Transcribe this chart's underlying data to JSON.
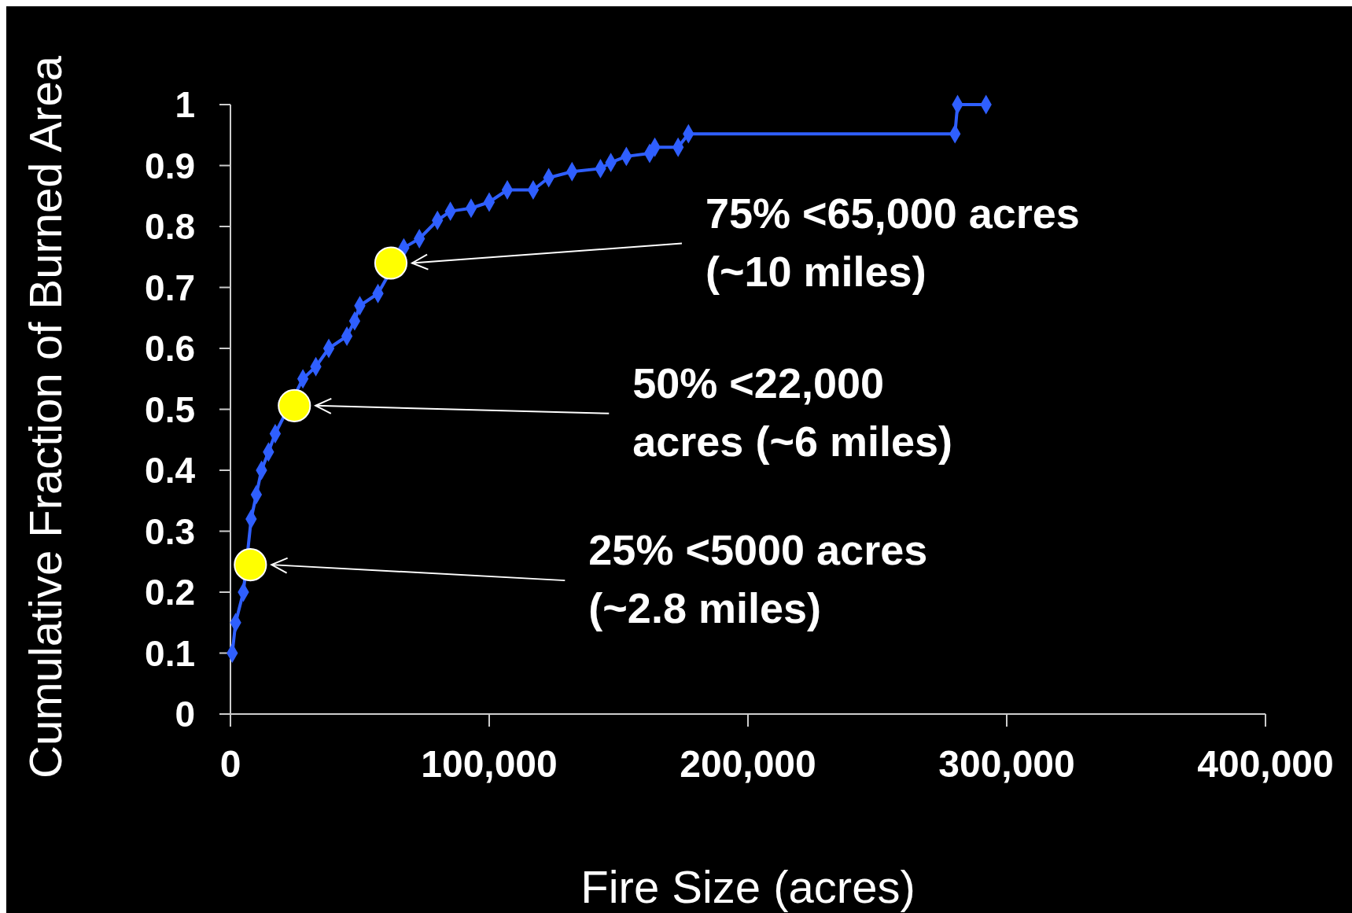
{
  "chart_data": {
    "type": "line",
    "xlabel": "Fire Size (acres)",
    "ylabel": "Cumulative Fraction of Burned Area",
    "xlim": [
      0,
      400000
    ],
    "xticks": [
      0,
      {
        "value": 100000,
        "label": "100,000"
      },
      {
        "value": 200000,
        "label": "200,000"
      },
      {
        "value": 300000,
        "label": "300,000"
      },
      {
        "value": 400000,
        "label": "400,000"
      }
    ],
    "ylim": [
      0,
      1
    ],
    "yticks": [
      0,
      0.1,
      0.2,
      0.3,
      0.4,
      0.5,
      0.6,
      0.7,
      0.8,
      0.9,
      1
    ],
    "grid": false,
    "series": [
      {
        "color": "#2f5fff",
        "marker": "diamond",
        "line_style": "solid",
        "x": [
          700,
          2000,
          5000,
          8000,
          10000,
          12000,
          14700,
          17300,
          28000,
          33000,
          38000,
          45000,
          48000,
          50000,
          57000,
          67000,
          73000,
          80000,
          85000,
          93000,
          100000,
          107000,
          117000,
          123000,
          132000,
          143000,
          147000,
          153000,
          162000,
          164000,
          173000,
          177000,
          280000,
          281000,
          292000
        ],
        "values": [
          0.1,
          0.15,
          0.2,
          0.32,
          0.36,
          0.4,
          0.43,
          0.46,
          0.55,
          0.57,
          0.6,
          0.62,
          0.645,
          0.67,
          0.69,
          0.765,
          0.78,
          0.81,
          0.825,
          0.83,
          0.84,
          0.86,
          0.86,
          0.88,
          0.89,
          0.895,
          0.905,
          0.915,
          0.92,
          0.93,
          0.93,
          0.952,
          0.952,
          1,
          1
        ]
      },
      {
        "type": "scatter",
        "color": "#ffff00",
        "marker": "circle",
        "x": [
          7700,
          24700,
          62000
        ],
        "values": [
          0.245,
          0.506,
          0.74
        ]
      }
    ],
    "annotations": [
      "25% <5000 acres\n(~2.8 miles)",
      "50% <22,000\nacres (~6 miles)",
      "75% <65,000 acres\n(~10 miles)"
    ]
  }
}
